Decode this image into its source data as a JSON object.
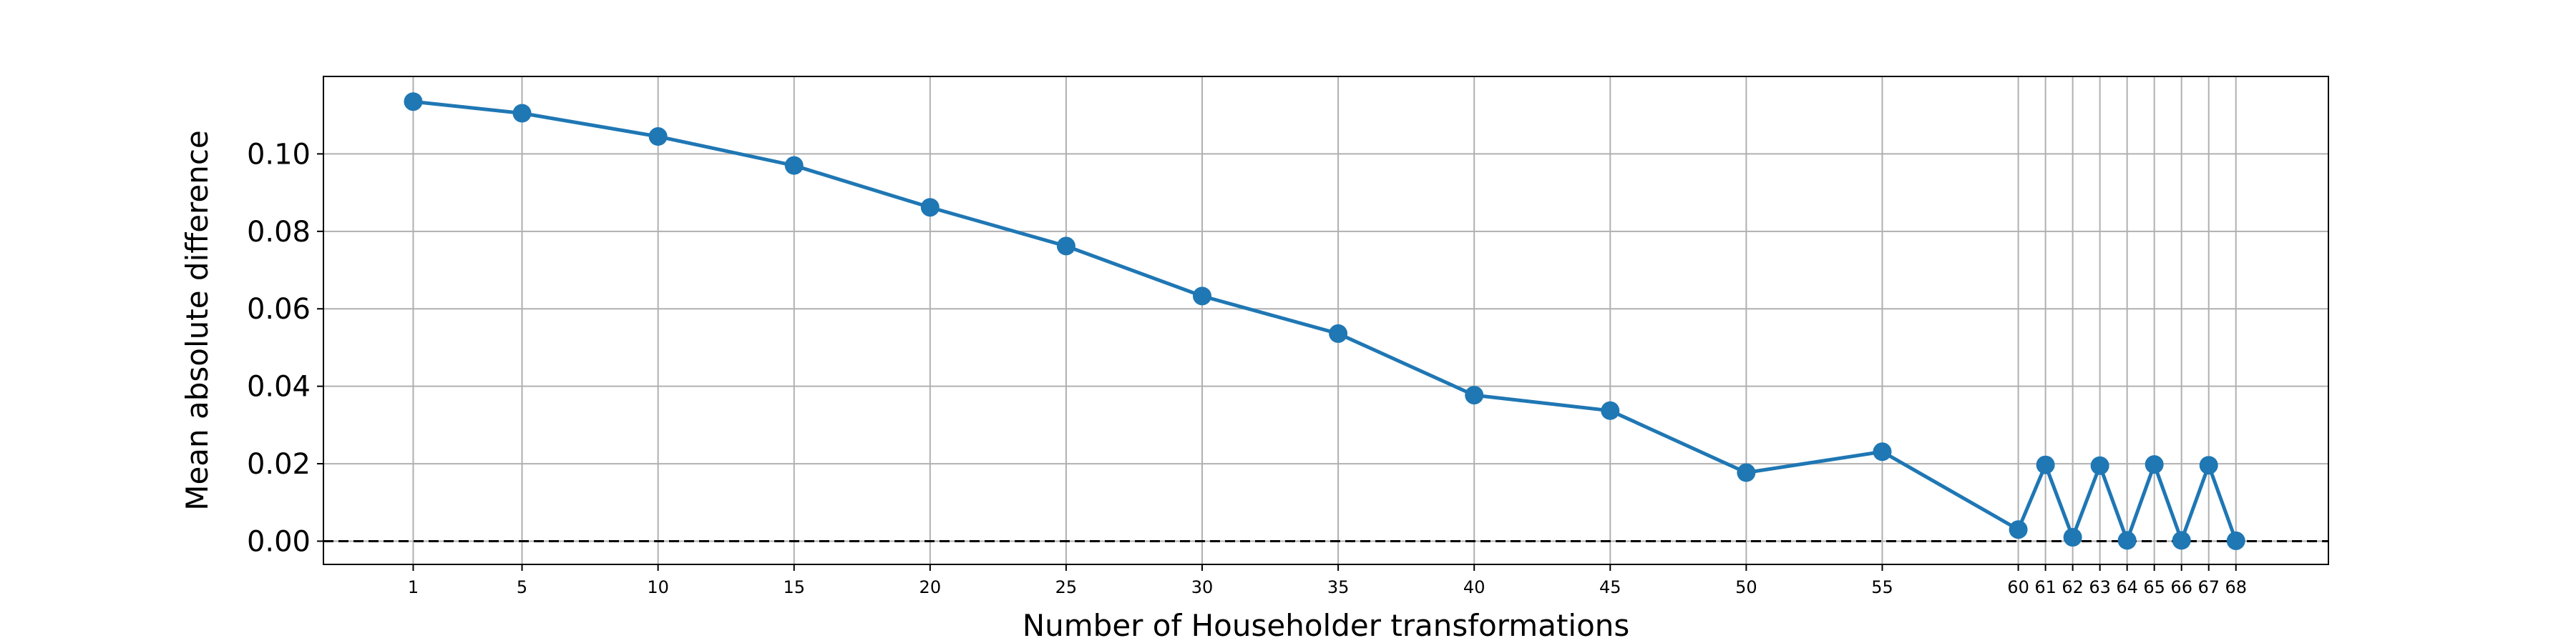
{
  "chart_data": {
    "type": "line",
    "xlabel": "Number of Householder transformations",
    "ylabel": "Mean absolute difference",
    "categories": [
      "1",
      "5",
      "10",
      "15",
      "20",
      "25",
      "30",
      "35",
      "40",
      "45",
      "50",
      "55",
      "60",
      "61",
      "62",
      "63",
      "64",
      "65",
      "66",
      "67",
      "68"
    ],
    "x": [
      1,
      5,
      10,
      15,
      20,
      25,
      30,
      35,
      40,
      45,
      50,
      55,
      60,
      61,
      62,
      63,
      64,
      65,
      66,
      67,
      68
    ],
    "series": [
      {
        "values": [
          0.1135,
          0.1105,
          0.1045,
          0.097,
          0.0862,
          0.0762,
          0.0633,
          0.0536,
          0.0377,
          0.0337,
          0.0177,
          0.0231,
          0.003,
          0.0197,
          0.001,
          0.0195,
          0.0002,
          0.0198,
          0.0002,
          0.0196,
          0.0001
        ]
      }
    ],
    "yticks": [
      "0.00",
      "0.02",
      "0.04",
      "0.06",
      "0.08",
      "0.10"
    ],
    "ylim": [
      -0.006,
      0.12
    ],
    "xlim": [
      -2.3,
      71.4
    ],
    "grid": true,
    "reference_line": {
      "y": 0.0,
      "style": "dashed"
    },
    "colors": {
      "series": "#1f77b4",
      "grid": "#b0b0b0",
      "reference": "#000000"
    }
  }
}
